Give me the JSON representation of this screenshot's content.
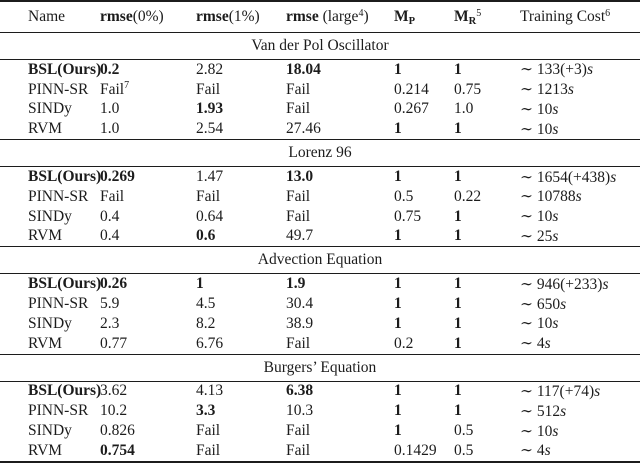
{
  "table": {
    "approx_symbol": "∼",
    "header": {
      "name": "Name",
      "rmse_word": "rmse",
      "rmse0_args": "(0%)",
      "rmse1_args": "(1%)",
      "rmse_large_open": " (large",
      "rmse_large_sup": "4",
      "rmse_large_close": ")",
      "mp_base": "M",
      "mp_sub": "P",
      "mr_base": "M",
      "mr_sub": "R",
      "mr_sup": "5",
      "training_label": "Training Cost",
      "training_sup": "6"
    },
    "sections": [
      {
        "title": "Van der Pol Oscillator",
        "rows": [
          {
            "name": "BSL(Ours)",
            "bold": true,
            "cells": [
              {
                "t": "0.2",
                "b": true
              },
              {
                "t": "2.82"
              },
              {
                "t": "18.04",
                "b": true
              },
              {
                "t": "1",
                "b": true
              },
              {
                "t": "1",
                "b": true
              }
            ],
            "cost": {
              "num": "133(+3)",
              "unit": "s"
            }
          },
          {
            "name": "PINN-SR",
            "cells": [
              {
                "t": "Fail",
                "sup": "7"
              },
              {
                "t": "Fail"
              },
              {
                "t": "Fail"
              },
              {
                "t": "0.214"
              },
              {
                "t": "0.75"
              }
            ],
            "cost": {
              "num": "1213",
              "unit": "s"
            }
          },
          {
            "name": "SINDy",
            "cells": [
              {
                "t": "1.0"
              },
              {
                "t": "1.93",
                "b": true
              },
              {
                "t": "Fail"
              },
              {
                "t": "0.267"
              },
              {
                "t": "1.0"
              }
            ],
            "cost": {
              "num": "10",
              "unit": "s"
            }
          },
          {
            "name": "RVM",
            "cells": [
              {
                "t": "1.0"
              },
              {
                "t": "2.54"
              },
              {
                "t": "27.46"
              },
              {
                "t": "1",
                "b": true
              },
              {
                "t": "1",
                "b": true
              }
            ],
            "cost": {
              "num": "10",
              "unit": "s"
            }
          }
        ]
      },
      {
        "title": "Lorenz 96",
        "rows": [
          {
            "name": "BSL(Ours)",
            "bold": true,
            "cells": [
              {
                "t": "0.269",
                "b": true
              },
              {
                "t": "1.47"
              },
              {
                "t": "13.0",
                "b": true
              },
              {
                "t": "1",
                "b": true
              },
              {
                "t": "1",
                "b": true
              }
            ],
            "cost": {
              "num": "1654(+438)",
              "unit": "s"
            }
          },
          {
            "name": "PINN-SR",
            "cells": [
              {
                "t": "Fail"
              },
              {
                "t": "Fail"
              },
              {
                "t": "Fail"
              },
              {
                "t": "0.5"
              },
              {
                "t": "0.22"
              }
            ],
            "cost": {
              "num": "10788",
              "unit": "s"
            }
          },
          {
            "name": "SINDy",
            "cells": [
              {
                "t": "0.4"
              },
              {
                "t": "0.64"
              },
              {
                "t": "Fail"
              },
              {
                "t": "0.75"
              },
              {
                "t": "1",
                "b": true
              }
            ],
            "cost": {
              "num": "10",
              "unit": "s"
            }
          },
          {
            "name": "RVM",
            "cells": [
              {
                "t": "0.4"
              },
              {
                "t": "0.6",
                "b": true
              },
              {
                "t": "49.7"
              },
              {
                "t": "1",
                "b": true
              },
              {
                "t": "1",
                "b": true
              }
            ],
            "cost": {
              "num": "25",
              "unit": "s"
            }
          }
        ]
      },
      {
        "title": "Advection Equation",
        "rows": [
          {
            "name": "BSL(Ours)",
            "bold": true,
            "cells": [
              {
                "t": "0.26",
                "b": true
              },
              {
                "t": "1",
                "b": true
              },
              {
                "t": "1.9",
                "b": true
              },
              {
                "t": "1",
                "b": true
              },
              {
                "t": "1",
                "b": true
              }
            ],
            "cost": {
              "num": "946(+233)",
              "unit": "s"
            }
          },
          {
            "name": "PINN-SR",
            "cells": [
              {
                "t": "5.9"
              },
              {
                "t": "4.5"
              },
              {
                "t": "30.4"
              },
              {
                "t": "1",
                "b": true
              },
              {
                "t": "1",
                "b": true
              }
            ],
            "cost": {
              "num": "650",
              "unit": "s"
            }
          },
          {
            "name": "SINDy",
            "cells": [
              {
                "t": "2.3"
              },
              {
                "t": "8.2"
              },
              {
                "t": "38.9"
              },
              {
                "t": "1",
                "b": true
              },
              {
                "t": "1",
                "b": true
              }
            ],
            "cost": {
              "num": "10",
              "unit": "s"
            }
          },
          {
            "name": "RVM",
            "cells": [
              {
                "t": "0.77"
              },
              {
                "t": "6.76"
              },
              {
                "t": "Fail"
              },
              {
                "t": "0.2"
              },
              {
                "t": "1",
                "b": true
              }
            ],
            "cost": {
              "num": "4",
              "unit": "s"
            }
          }
        ]
      },
      {
        "title": "Burgers’ Equation",
        "rows": [
          {
            "name": "BSL(Ours)",
            "bold": true,
            "cells": [
              {
                "t": "3.62"
              },
              {
                "t": "4.13"
              },
              {
                "t": "6.38",
                "b": true
              },
              {
                "t": "1",
                "b": true
              },
              {
                "t": "1",
                "b": true
              }
            ],
            "cost": {
              "num": "117(+74)",
              "unit": "s"
            }
          },
          {
            "name": "PINN-SR",
            "cells": [
              {
                "t": "10.2"
              },
              {
                "t": "3.3",
                "b": true
              },
              {
                "t": "10.3"
              },
              {
                "t": "1",
                "b": true
              },
              {
                "t": "1",
                "b": true
              }
            ],
            "cost": {
              "num": "512",
              "unit": "s"
            }
          },
          {
            "name": "SINDy",
            "cells": [
              {
                "t": "0.826"
              },
              {
                "t": "Fail"
              },
              {
                "t": "Fail"
              },
              {
                "t": "1",
                "b": true
              },
              {
                "t": "0.5"
              }
            ],
            "cost": {
              "num": "10",
              "unit": "s"
            }
          },
          {
            "name": "RVM",
            "cells": [
              {
                "t": "0.754",
                "b": true
              },
              {
                "t": "Fail"
              },
              {
                "t": "Fail"
              },
              {
                "t": "0.1429"
              },
              {
                "t": "0.5"
              }
            ],
            "cost": {
              "num": "4",
              "unit": "s"
            }
          }
        ]
      }
    ]
  }
}
